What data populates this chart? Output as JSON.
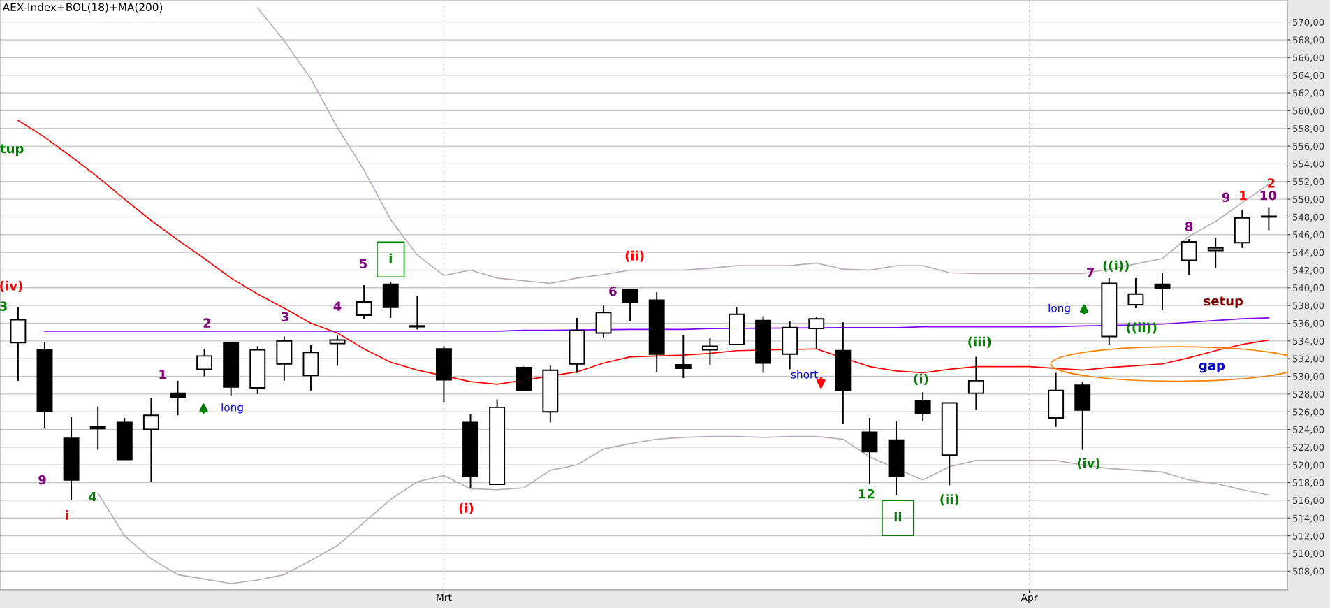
{
  "chart_data": {
    "type": "candlestick",
    "title": "AEX-Index+BOL(18)+MA(200)",
    "categories": [
      null,
      null,
      null,
      null,
      null,
      null,
      null,
      null,
      null,
      null,
      null,
      null,
      null,
      null,
      null,
      null,
      "Mrt",
      null,
      null,
      null,
      null,
      null,
      null,
      null,
      null,
      null,
      null,
      null,
      null,
      null,
      null,
      null,
      null,
      null,
      null,
      null,
      null,
      null,
      "Apr",
      null,
      null,
      null,
      null,
      null,
      null,
      null,
      null,
      null
    ],
    "ohlc": [
      [
        533.8,
        537.8,
        529.5,
        536.4
      ],
      [
        533.0,
        533.9,
        524.2,
        526.1
      ],
      [
        523.0,
        525.4,
        516.0,
        518.3
      ],
      [
        524.3,
        526.6,
        521.7,
        524.1
      ],
      [
        524.8,
        525.3,
        520.6,
        520.6
      ],
      [
        524.0,
        527.6,
        518.1,
        525.6
      ],
      [
        528.1,
        529.5,
        525.6,
        527.6
      ],
      [
        530.8,
        533.1,
        530.0,
        532.3
      ],
      [
        533.8,
        533.8,
        527.8,
        528.8
      ],
      [
        528.7,
        533.4,
        528.0,
        533.0
      ],
      [
        531.4,
        534.5,
        529.5,
        534.0
      ],
      [
        530.1,
        533.6,
        528.4,
        532.7
      ],
      [
        533.7,
        534.6,
        531.2,
        534.1
      ],
      [
        536.9,
        540.3,
        536.5,
        538.4
      ],
      [
        540.4,
        540.7,
        536.6,
        537.8
      ],
      [
        535.7,
        539.1,
        535.3,
        535.6
      ],
      [
        533.1,
        533.4,
        527.1,
        529.6
      ],
      [
        524.8,
        525.7,
        517.4,
        518.7
      ],
      [
        517.8,
        527.4,
        517.8,
        526.5
      ],
      [
        531.0,
        531.1,
        528.4,
        528.4
      ],
      [
        526.0,
        531.2,
        524.8,
        530.7
      ],
      [
        531.4,
        536.6,
        530.4,
        535.2
      ],
      [
        534.9,
        538.0,
        534.3,
        537.2
      ],
      [
        539.8,
        539.8,
        536.2,
        538.4
      ],
      [
        538.6,
        539.5,
        530.5,
        532.5
      ],
      [
        531.3,
        534.7,
        529.8,
        530.9
      ],
      [
        533.0,
        534.3,
        531.3,
        533.4
      ],
      [
        533.6,
        537.8,
        533.6,
        537.0
      ],
      [
        536.3,
        536.8,
        530.4,
        531.5
      ],
      [
        532.5,
        536.2,
        530.8,
        535.5
      ],
      [
        535.4,
        536.7,
        533.1,
        536.5
      ],
      [
        532.9,
        536.1,
        524.6,
        528.4
      ],
      [
        523.7,
        525.3,
        517.9,
        521.5
      ],
      [
        522.8,
        524.9,
        516.6,
        518.7
      ],
      [
        527.2,
        528.2,
        524.9,
        525.8
      ],
      [
        521.1,
        527.0,
        517.7,
        527.0
      ],
      [
        528.1,
        532.2,
        526.2,
        529.5
      ],
      null,
      null,
      [
        525.3,
        530.4,
        524.3,
        528.4
      ],
      [
        529.0,
        529.4,
        521.7,
        526.2
      ],
      [
        534.5,
        541.1,
        533.6,
        540.5
      ],
      [
        538.1,
        541.1,
        537.7,
        539.3
      ],
      [
        540.4,
        541.7,
        537.5,
        539.9
      ],
      [
        543.1,
        545.5,
        541.4,
        545.2
      ],
      [
        544.2,
        545.6,
        542.2,
        544.5
      ],
      [
        545.1,
        548.8,
        544.5,
        547.9
      ],
      [
        548.0,
        549.1,
        546.5,
        548.0
      ]
    ],
    "series": [
      {
        "type": "line",
        "color": "#b8adb8",
        "values": [
          null,
          null,
          null,
          null,
          null,
          null,
          null,
          null,
          null,
          571.6,
          567.9,
          563.6,
          558.1,
          553.3,
          547.7,
          543.7,
          541.4,
          542.0,
          541.1,
          540.8,
          540.5,
          541.1,
          541.5,
          542.0,
          542.0,
          542.0,
          542.2,
          542.5,
          542.5,
          542.5,
          542.8,
          542.1,
          542.0,
          542.5,
          542.5,
          541.7,
          541.6,
          541.6,
          541.6,
          541.6,
          541.6,
          542.1,
          542.7,
          543.3,
          545.8,
          547.5,
          549.6,
          551.7
        ]
      },
      {
        "type": "line",
        "color": "#b8adb8",
        "values": [
          null,
          null,
          null,
          516.8,
          512.0,
          509.4,
          507.6,
          507.1,
          506.6,
          507.0,
          507.6,
          509.2,
          510.9,
          513.5,
          516.1,
          518.1,
          518.8,
          517.3,
          517.2,
          517.4,
          519.4,
          520.0,
          521.8,
          522.4,
          522.9,
          523.1,
          523.2,
          523.2,
          523.1,
          523.2,
          523.2,
          522.9,
          520.9,
          null,
          518.3,
          519.8,
          520.5,
          520.5,
          520.5,
          520.5,
          520.0,
          519.6,
          519.4,
          519.2,
          518.3,
          517.9,
          517.2,
          516.6
        ]
      },
      {
        "type": "line",
        "color": "#ff0000",
        "values": [
          558.9,
          557.0,
          554.8,
          552.5,
          550.0,
          547.6,
          545.4,
          543.3,
          541.1,
          539.3,
          537.7,
          536.0,
          534.9,
          533.1,
          531.6,
          530.7,
          null,
          529.4,
          529.1,
          null,
          null,
          530.5,
          531.5,
          532.2,
          null,
          532.4,
          532.6,
          532.9,
          null,
          null,
          533.1,
          null,
          531.1,
          530.6,
          530.4,
          530.8,
          531.1,
          531.1,
          531.1,
          530.9,
          530.7,
          531.0,
          531.2,
          531.4,
          532.1,
          532.9,
          533.6,
          534.1
        ]
      },
      {
        "type": "line",
        "color": "#8000ff",
        "values": [
          null,
          535.1,
          535.1,
          535.1,
          535.1,
          535.1,
          535.1,
          535.1,
          535.1,
          535.1,
          535.1,
          535.1,
          535.1,
          535.1,
          535.1,
          535.1,
          535.1,
          535.1,
          535.1,
          535.2,
          535.2,
          null,
          null,
          535.3,
          null,
          535.3,
          535.4,
          null,
          null,
          null,
          null,
          535.5,
          535.5,
          535.5,
          535.6,
          535.6,
          535.6,
          535.6,
          535.6,
          535.6,
          535.7,
          null,
          535.8,
          535.9,
          536.1,
          536.3,
          536.5,
          536.6
        ]
      }
    ],
    "ylim": [
      505.9,
      572.5
    ],
    "yticks": [
      {
        "value": 508,
        "label": "508,00"
      },
      {
        "value": 510,
        "label": "510,00"
      },
      {
        "value": 512,
        "label": "512,00"
      },
      {
        "value": 514,
        "label": "514,00"
      },
      {
        "value": 516,
        "label": "516,00"
      },
      {
        "value": 518,
        "label": "518,00"
      },
      {
        "value": 520,
        "label": "520,00"
      },
      {
        "value": 522,
        "label": "522,00"
      },
      {
        "value": 524,
        "label": "524,00"
      },
      {
        "value": 526,
        "label": "526,00"
      },
      {
        "value": 528,
        "label": "528,00"
      },
      {
        "value": 530,
        "label": "530,00"
      },
      {
        "value": 532,
        "label": "532,00"
      },
      {
        "value": 534,
        "label": "534,00"
      },
      {
        "value": 536,
        "label": "536,00"
      },
      {
        "value": 538,
        "label": "538,00"
      },
      {
        "value": 540,
        "label": "540,00"
      },
      {
        "value": 542,
        "label": "542,00"
      },
      {
        "value": 544,
        "label": "544,00"
      },
      {
        "value": 546,
        "label": "546,00"
      },
      {
        "value": 548,
        "label": "548,00"
      },
      {
        "value": 550,
        "label": "550,00"
      },
      {
        "value": 552,
        "label": "552,00"
      },
      {
        "value": 554,
        "label": "554,00"
      },
      {
        "value": 556,
        "label": "556,00"
      },
      {
        "value": 558,
        "label": "558,00"
      },
      {
        "value": 560,
        "label": "560,00"
      },
      {
        "value": 562,
        "label": "562,00"
      },
      {
        "value": 564,
        "label": "564,00"
      },
      {
        "value": 566,
        "label": "566,00"
      },
      {
        "value": 568,
        "label": "568,00"
      },
      {
        "value": 570,
        "label": "570,00"
      }
    ],
    "grid": true,
    "annotations": [
      "tup",
      "(iv)",
      "3",
      "9",
      "i",
      "4",
      "1",
      "long",
      "2",
      "3",
      "4",
      "5",
      "i",
      "(i)",
      "6",
      "(ii)",
      "short",
      "12",
      "ii",
      "(i)",
      "(ii)",
      "(iii)",
      "long",
      "(iv)",
      "7",
      "((i))",
      "((ii))",
      "8",
      "9",
      "1",
      "10",
      "2",
      "setup",
      "gap"
    ]
  }
}
